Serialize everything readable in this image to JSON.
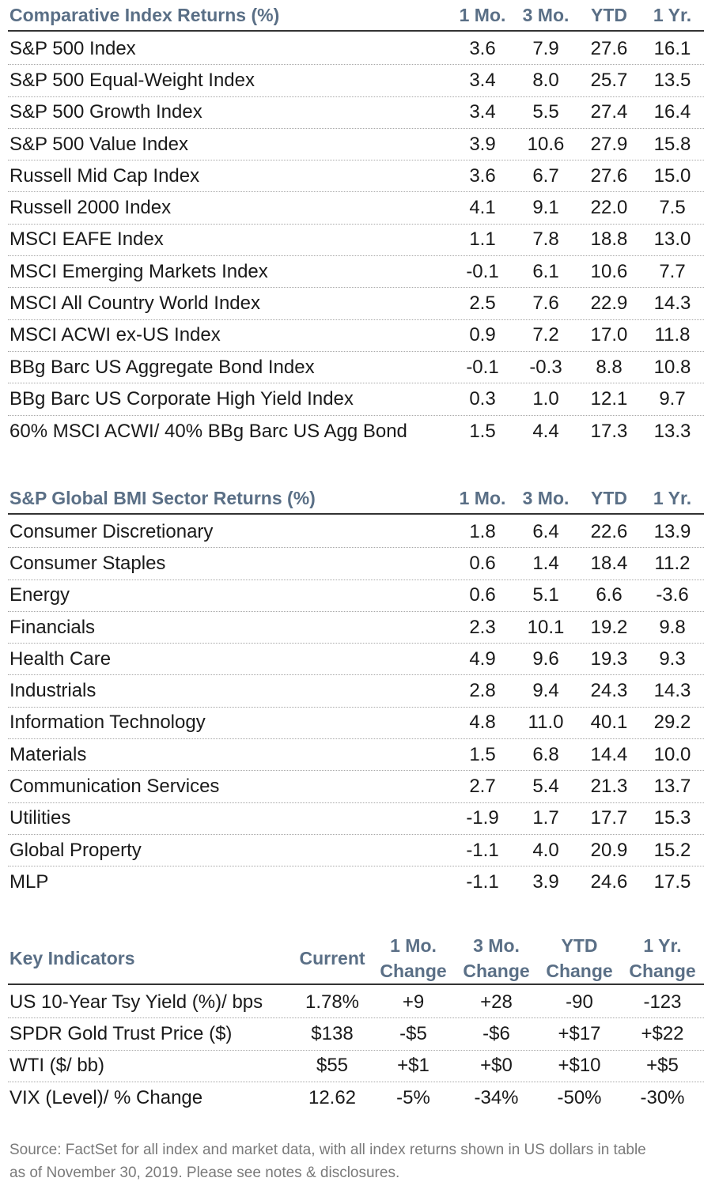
{
  "comparative": {
    "title": "Comparative Index Returns (%)",
    "columns": [
      "1 Mo.",
      "3 Mo.",
      "YTD",
      "1 Yr."
    ],
    "rows": [
      {
        "name": "S&P 500 Index",
        "v": [
          "3.6",
          "7.9",
          "27.6",
          "16.1"
        ]
      },
      {
        "name": "S&P 500 Equal-Weight Index",
        "v": [
          "3.4",
          "8.0",
          "25.7",
          "13.5"
        ]
      },
      {
        "name": "S&P 500 Growth Index",
        "v": [
          "3.4",
          "5.5",
          "27.4",
          "16.4"
        ]
      },
      {
        "name": "S&P 500 Value Index",
        "v": [
          "3.9",
          "10.6",
          "27.9",
          "15.8"
        ]
      },
      {
        "name": "Russell Mid Cap Index",
        "v": [
          "3.6",
          "6.7",
          "27.6",
          "15.0"
        ]
      },
      {
        "name": "Russell 2000 Index",
        "v": [
          "4.1",
          "9.1",
          "22.0",
          "7.5"
        ]
      },
      {
        "name": "MSCI EAFE Index",
        "v": [
          "1.1",
          "7.8",
          "18.8",
          "13.0"
        ]
      },
      {
        "name": "MSCI Emerging Markets Index",
        "v": [
          "-0.1",
          "6.1",
          "10.6",
          "7.7"
        ]
      },
      {
        "name": "MSCI All Country World Index",
        "v": [
          "2.5",
          "7.6",
          "22.9",
          "14.3"
        ]
      },
      {
        "name": "MSCI ACWI ex-US Index",
        "v": [
          "0.9",
          "7.2",
          "17.0",
          "11.8"
        ]
      },
      {
        "name": "BBg Barc US Aggregate Bond Index",
        "v": [
          "-0.1",
          "-0.3",
          "8.8",
          "10.8"
        ]
      },
      {
        "name": "BBg Barc US Corporate High Yield Index",
        "v": [
          "0.3",
          "1.0",
          "12.1",
          "9.7"
        ]
      },
      {
        "name": "60% MSCI ACWI/ 40% BBg Barc US Agg Bond",
        "v": [
          "1.5",
          "4.4",
          "17.3",
          "13.3"
        ]
      }
    ]
  },
  "sectors": {
    "title": "S&P Global BMI Sector Returns (%)",
    "columns": [
      "1 Mo.",
      "3 Mo.",
      "YTD",
      "1 Yr."
    ],
    "rows": [
      {
        "name": "Consumer Discretionary",
        "v": [
          "1.8",
          "6.4",
          "22.6",
          "13.9"
        ]
      },
      {
        "name": "Consumer Staples",
        "v": [
          "0.6",
          "1.4",
          "18.4",
          "11.2"
        ]
      },
      {
        "name": "Energy",
        "v": [
          "0.6",
          "5.1",
          "6.6",
          "-3.6"
        ]
      },
      {
        "name": "Financials",
        "v": [
          "2.3",
          "10.1",
          "19.2",
          "9.8"
        ]
      },
      {
        "name": "Health Care",
        "v": [
          "4.9",
          "9.6",
          "19.3",
          "9.3"
        ]
      },
      {
        "name": "Industrials",
        "v": [
          "2.8",
          "9.4",
          "24.3",
          "14.3"
        ]
      },
      {
        "name": "Information Technology",
        "v": [
          "4.8",
          "11.0",
          "40.1",
          "29.2"
        ]
      },
      {
        "name": "Materials",
        "v": [
          "1.5",
          "6.8",
          "14.4",
          "10.0"
        ]
      },
      {
        "name": "Communication Services",
        "v": [
          "2.7",
          "5.4",
          "21.3",
          "13.7"
        ]
      },
      {
        "name": "Utilities",
        "v": [
          "-1.9",
          "1.7",
          "17.7",
          "15.3"
        ]
      },
      {
        "name": "Global Property",
        "v": [
          "-1.1",
          "4.0",
          "20.9",
          "15.2"
        ]
      },
      {
        "name": "MLP",
        "v": [
          "-1.1",
          "3.9",
          "24.6",
          "17.5"
        ]
      }
    ]
  },
  "indicators": {
    "title": "Key Indicators",
    "columns": [
      {
        "l1": "",
        "l2": "Current"
      },
      {
        "l1": "1 Mo.",
        "l2": "Change"
      },
      {
        "l1": "3 Mo.",
        "l2": "Change"
      },
      {
        "l1": "YTD",
        "l2": "Change"
      },
      {
        "l1": "1 Yr.",
        "l2": "Change"
      }
    ],
    "rows": [
      {
        "name": "US 10-Year Tsy Yield (%)/ bps",
        "v": [
          "1.78%",
          "+9",
          "+28",
          "-90",
          "-123"
        ]
      },
      {
        "name": "SPDR Gold Trust Price ($)",
        "v": [
          "$138",
          "-$5",
          "-$6",
          "+$17",
          "+$22"
        ]
      },
      {
        "name": "WTI ($/ bb)",
        "v": [
          "$55",
          "+$1",
          "+$0",
          "+$10",
          "+$5"
        ]
      },
      {
        "name": "VIX (Level)/ % Change",
        "v": [
          "12.62",
          "-5%",
          "-34%",
          "-50%",
          "-30%"
        ]
      }
    ]
  },
  "footer": {
    "line1": "Source: FactSet for all index and market data, with all index returns shown in US dollars in table",
    "line2": "as of November 30, 2019. Please see notes & disclosures."
  }
}
